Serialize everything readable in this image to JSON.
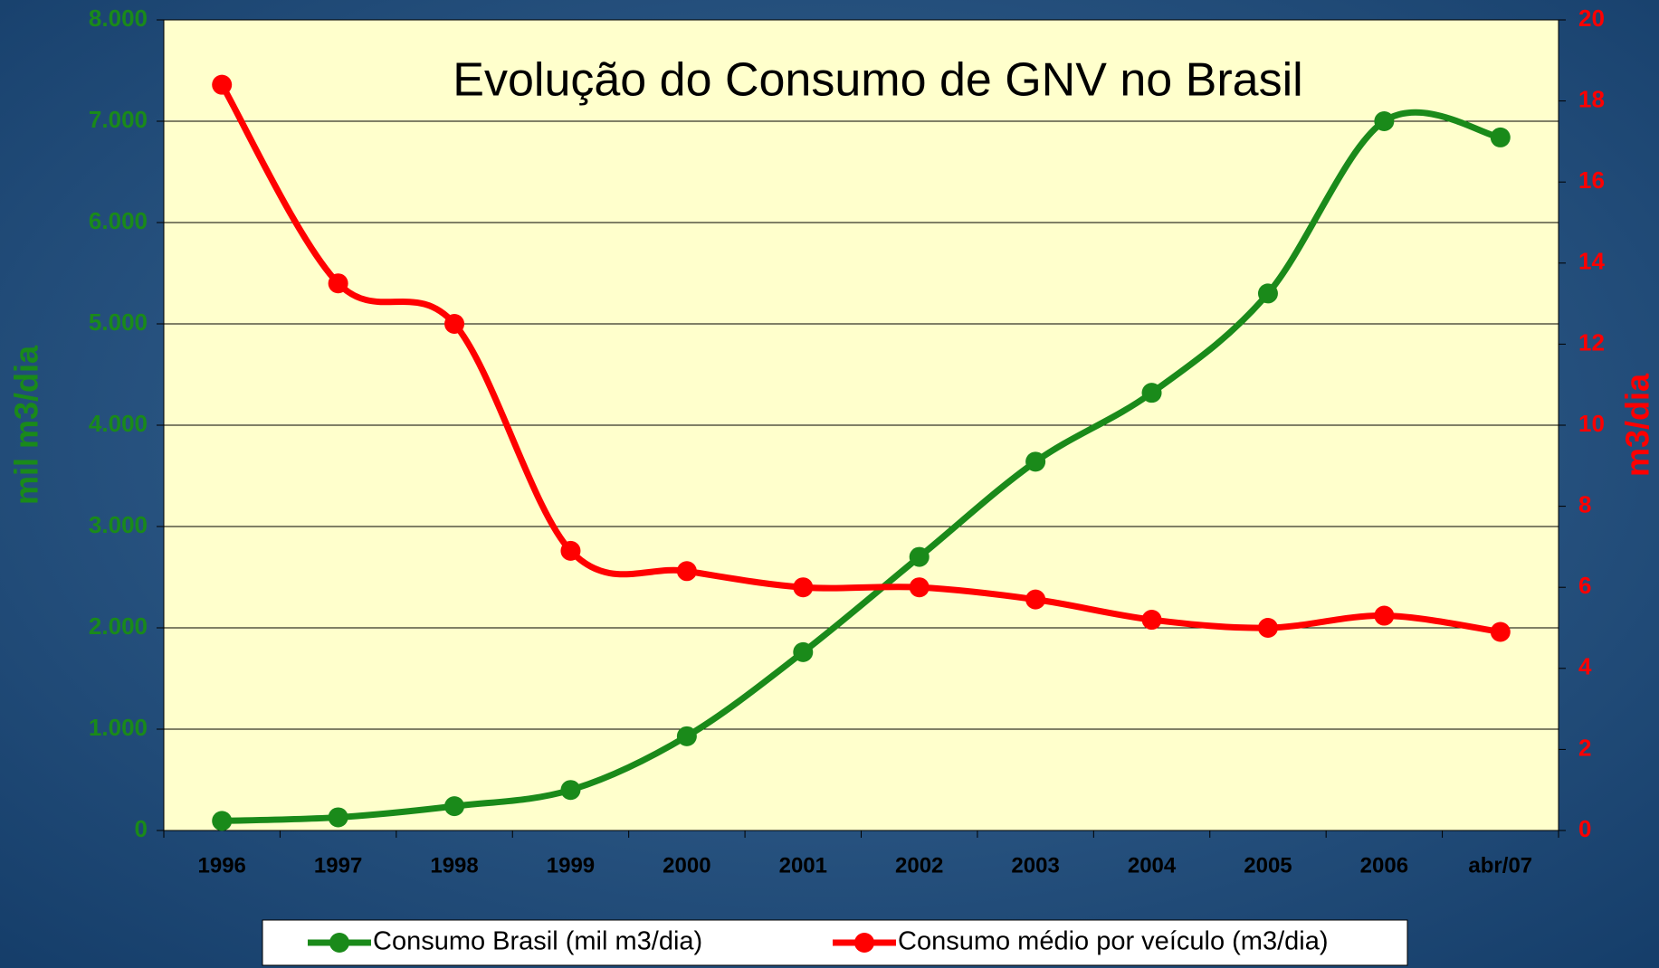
{
  "chart_data": {
    "type": "line",
    "title": "Evolução do Consumo de GNV no Brasil",
    "ylabel": "mil m3/dia",
    "y2label": "m3/dia",
    "categories": [
      "1996",
      "1997",
      "1998",
      "1999",
      "2000",
      "2001",
      "2002",
      "2003",
      "2004",
      "2005",
      "2006",
      "abr/07"
    ],
    "series": [
      {
        "name": "Consumo Brasil (mil m3/dia)",
        "color": "#1a8a1a",
        "values": [
          95,
          130,
          240,
          400,
          930,
          1760,
          2700,
          3640,
          4320,
          5300,
          7000,
          6840
        ]
      },
      {
        "name": "Consumo médio por veículo (m3/dia)",
        "color": "#ff0000",
        "axis": "y2",
        "values": [
          18.4,
          13.5,
          12.5,
          6.9,
          6.4,
          6.0,
          6.0,
          5.7,
          5.2,
          5.0,
          5.3,
          4.9
        ]
      }
    ],
    "ylim": [
      0,
      8000
    ],
    "yticks": [
      0,
      {
        "value": 1000,
        "label": "1.000"
      },
      {
        "value": 2000,
        "label": "2.000"
      },
      {
        "value": 3000,
        "label": "3.000"
      },
      {
        "value": 4000,
        "label": "4.000"
      },
      {
        "value": 5000,
        "label": "5.000"
      },
      {
        "value": 6000,
        "label": "6.000"
      },
      {
        "value": 7000,
        "label": "7.000"
      },
      {
        "value": 8000,
        "label": "8.000"
      }
    ],
    "y2lim": [
      0,
      20
    ],
    "y2ticks": [
      0,
      2,
      4,
      6,
      8,
      10,
      12,
      14,
      16,
      18,
      20
    ],
    "grid": true,
    "legend": "bottom"
  }
}
